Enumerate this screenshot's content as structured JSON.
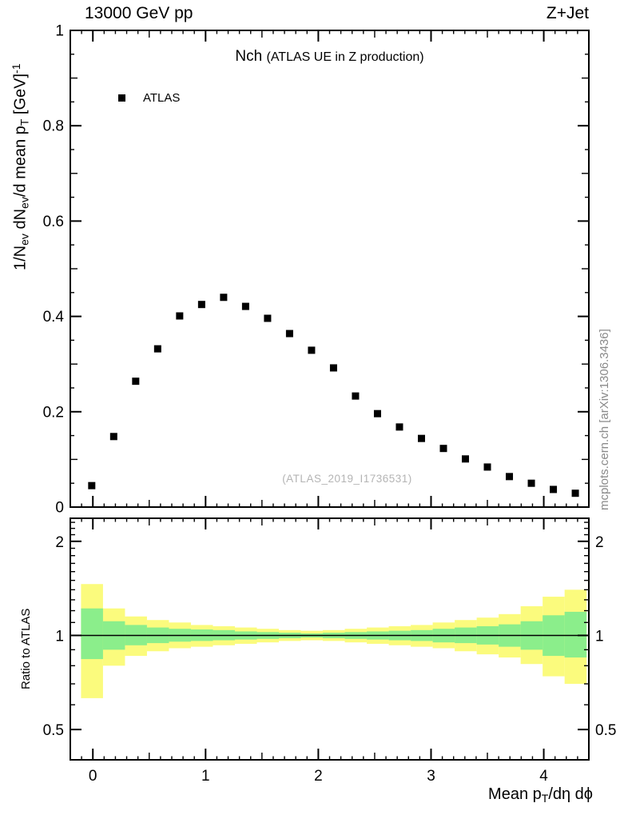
{
  "header": {
    "left": "13000 GeV pp",
    "right": "Z+Jet"
  },
  "title": {
    "main": "Nch ",
    "sub": "(ATLAS UE in Z production)"
  },
  "legend": {
    "entries": [
      {
        "label": "ATLAS",
        "marker": "filled-square",
        "color": "#000000"
      }
    ]
  },
  "watermark": "(ATLAS_2019_I1736531)",
  "side_note": "mcplots.cern.ch [arXiv:1306.3436]",
  "labels": {
    "y_main_parts": [
      {
        "t": "1/N"
      },
      {
        "t": "ev",
        "style": "sub"
      },
      {
        "t": " dN"
      },
      {
        "t": "ev",
        "style": "sub"
      },
      {
        "t": "/d mean p"
      },
      {
        "t": "T",
        "style": "sub"
      },
      {
        "t": " [GeV]"
      },
      {
        "t": "-1",
        "style": "sup"
      }
    ],
    "x_parts": [
      {
        "t": "Mean p"
      },
      {
        "t": "T",
        "style": "sub"
      },
      {
        "t": "/dη dϕ"
      }
    ],
    "ratio_y": "Ratio to ATLAS"
  },
  "chart_data": {
    "type": "scatter",
    "title": "Nch (ATLAS UE in Z production)",
    "xlabel": "Mean pT/dη dϕ",
    "xlim": [
      -0.2,
      4.4
    ],
    "xticks": [
      0,
      1,
      2,
      3,
      4
    ],
    "main_panel": {
      "ylabel": "1/Nev dNev/d mean pT [GeV]^-1",
      "ylim": [
        0,
        1
      ],
      "yticks": [
        0,
        0.2,
        0.4,
        0.6,
        0.8,
        1
      ],
      "grid": false,
      "series": [
        {
          "name": "ATLAS",
          "marker": "filled-square",
          "color": "#000000",
          "x": [
            -0.01,
            0.185,
            0.38,
            0.575,
            0.77,
            0.965,
            1.16,
            1.355,
            1.55,
            1.745,
            1.94,
            2.135,
            2.33,
            2.525,
            2.72,
            2.915,
            3.11,
            3.305,
            3.5,
            3.695,
            3.89,
            4.085,
            4.28
          ],
          "y": [
            0.045,
            0.148,
            0.264,
            0.332,
            0.401,
            0.425,
            0.44,
            0.421,
            0.396,
            0.364,
            0.329,
            0.292,
            0.233,
            0.196,
            0.168,
            0.144,
            0.123,
            0.101,
            0.084,
            0.064,
            0.05,
            0.037,
            0.029
          ]
        }
      ]
    },
    "ratio_panel": {
      "ylabel": "Ratio to ATLAS",
      "yscale": "log",
      "ylim": [
        0.4,
        2.37
      ],
      "yticks": [
        0.5,
        1,
        2
      ],
      "baseline": 1,
      "bin_edges": [
        -0.105,
        0.09,
        0.285,
        0.48,
        0.675,
        0.87,
        1.065,
        1.26,
        1.455,
        1.65,
        1.845,
        2.04,
        2.235,
        2.43,
        2.625,
        2.82,
        3.015,
        3.21,
        3.405,
        3.6,
        3.795,
        3.99,
        4.185,
        4.38
      ],
      "bands": [
        {
          "name": "uncertainty-outer",
          "color": "#fbfb7d",
          "lo": [
            0.63,
            0.8,
            0.86,
            0.89,
            0.91,
            0.92,
            0.93,
            0.94,
            0.95,
            0.96,
            0.965,
            0.96,
            0.95,
            0.94,
            0.93,
            0.92,
            0.91,
            0.89,
            0.87,
            0.85,
            0.81,
            0.74,
            0.7
          ],
          "hi": [
            1.46,
            1.22,
            1.15,
            1.12,
            1.1,
            1.08,
            1.07,
            1.06,
            1.05,
            1.04,
            1.035,
            1.04,
            1.05,
            1.06,
            1.07,
            1.08,
            1.1,
            1.12,
            1.14,
            1.17,
            1.24,
            1.33,
            1.4
          ]
        },
        {
          "name": "uncertainty-inner",
          "color": "#8bee8b",
          "lo": [
            0.84,
            0.9,
            0.93,
            0.945,
            0.955,
            0.96,
            0.965,
            0.97,
            0.975,
            0.98,
            0.985,
            0.98,
            0.975,
            0.97,
            0.965,
            0.96,
            0.95,
            0.945,
            0.935,
            0.92,
            0.9,
            0.86,
            0.85
          ],
          "hi": [
            1.22,
            1.11,
            1.08,
            1.06,
            1.05,
            1.045,
            1.04,
            1.03,
            1.025,
            1.02,
            1.015,
            1.02,
            1.025,
            1.03,
            1.035,
            1.04,
            1.05,
            1.06,
            1.07,
            1.085,
            1.11,
            1.16,
            1.19
          ]
        }
      ]
    }
  }
}
